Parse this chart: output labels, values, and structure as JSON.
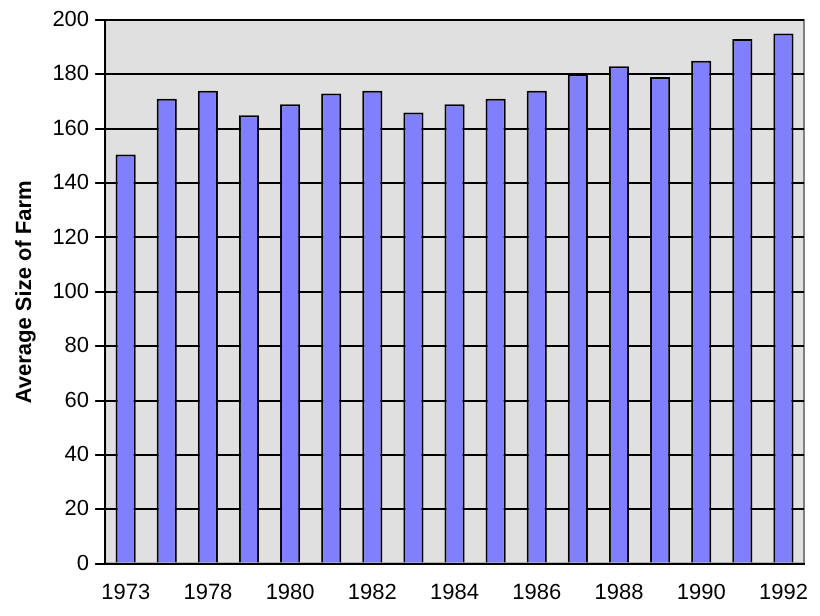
{
  "chart_data": {
    "type": "bar",
    "ylabel": "Average Size of Farm",
    "categories": [
      "1973",
      null,
      "1978",
      null,
      "1980",
      null,
      "1982",
      null,
      "1984",
      null,
      "1986",
      null,
      "1988",
      null,
      "1990",
      null,
      "1992"
    ],
    "values": [
      150.5,
      171,
      174,
      165,
      169,
      173,
      174,
      166,
      169,
      171,
      174,
      180,
      183,
      179,
      185,
      193,
      195
    ],
    "color": "#8080ff",
    "ylim": [
      0,
      200
    ],
    "yticks": [
      0,
      20,
      40,
      60,
      80,
      100,
      120,
      140,
      160,
      180,
      200
    ],
    "grid": "y"
  }
}
